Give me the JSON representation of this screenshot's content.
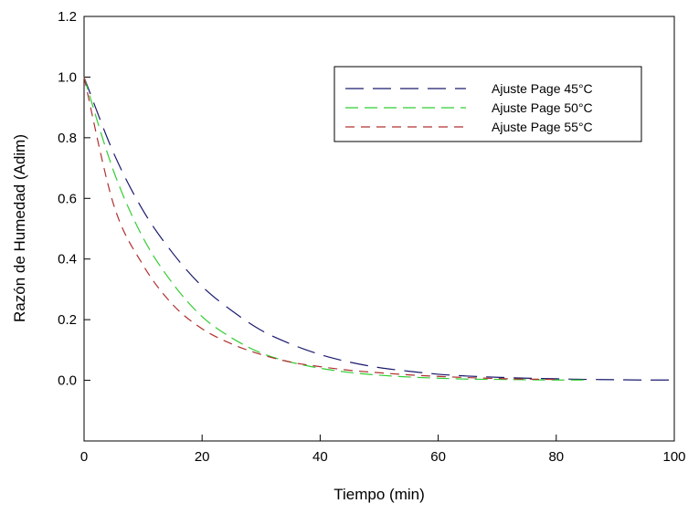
{
  "chart_data": {
    "type": "line",
    "title": "",
    "xlabel": "Tiempo (min)",
    "ylabel": "Razón de Humedad (Adim)",
    "xlim": [
      0,
      100
    ],
    "ylim": [
      -0.2,
      1.2
    ],
    "xticks": [
      0,
      20,
      40,
      60,
      80,
      100
    ],
    "xtick_labels": [
      "0",
      "20",
      "40",
      "60",
      "80",
      "100"
    ],
    "yticks": [
      0.0,
      0.2,
      0.4,
      0.6,
      0.8,
      1.0,
      1.2
    ],
    "ytick_labels": [
      "0.0",
      "0.2",
      "0.4",
      "0.6",
      "0.8",
      "1.0",
      "1.2"
    ],
    "grid": false,
    "legend_position": "top-right",
    "series": [
      {
        "name": "Ajuste Page 45°C",
        "color": "#1a1a6e",
        "dash": "long-dash",
        "x": [
          0,
          5,
          10,
          15,
          20,
          25,
          30,
          35,
          40,
          45,
          50,
          55,
          60,
          65,
          70,
          75,
          80,
          85,
          90,
          95,
          100
        ],
        "y": [
          1.0,
          0.75,
          0.56,
          0.42,
          0.31,
          0.23,
          0.165,
          0.12,
          0.085,
          0.06,
          0.042,
          0.03,
          0.02,
          0.014,
          0.01,
          0.007,
          0.005,
          0.003,
          0.002,
          0.001,
          0.001
        ]
      },
      {
        "name": "Ajuste Page 50°C",
        "color": "#33cc33",
        "dash": "medium-dash",
        "x": [
          0,
          5,
          10,
          15,
          20,
          25,
          30,
          35,
          40,
          45,
          50,
          55,
          60,
          65,
          70,
          75,
          80,
          85
        ],
        "y": [
          1.0,
          0.69,
          0.47,
          0.32,
          0.21,
          0.14,
          0.09,
          0.06,
          0.04,
          0.026,
          0.017,
          0.011,
          0.007,
          0.004,
          0.003,
          0.002,
          0.001,
          0.001
        ]
      },
      {
        "name": "Ajuste Page 55°C",
        "color": "#b03030",
        "dash": "short-dash",
        "x": [
          0,
          5,
          10,
          15,
          20,
          25,
          30,
          35,
          40,
          45,
          50,
          55,
          60,
          65,
          70,
          75,
          80
        ],
        "y": [
          1.0,
          0.58,
          0.38,
          0.25,
          0.17,
          0.12,
          0.085,
          0.06,
          0.045,
          0.033,
          0.025,
          0.018,
          0.013,
          0.009,
          0.006,
          0.004,
          0.003
        ]
      }
    ]
  }
}
